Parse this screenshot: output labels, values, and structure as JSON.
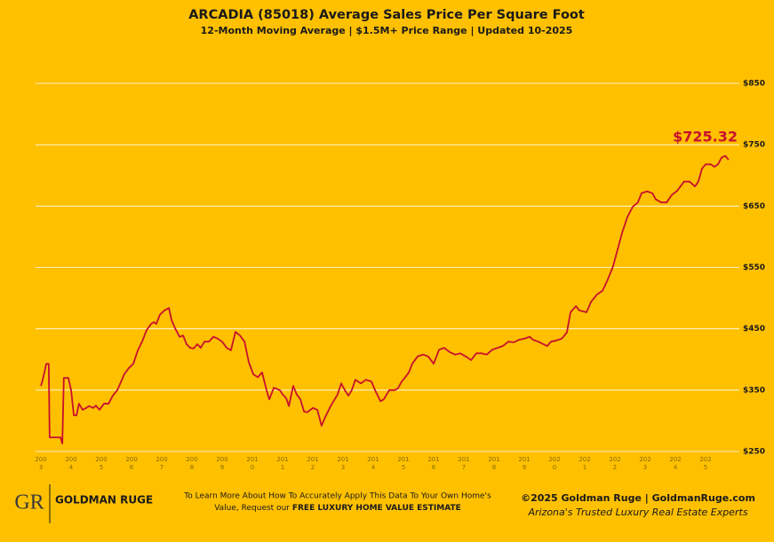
{
  "chart_data": {
    "type": "line",
    "title": "ARCADIA (85018) Average Sales Price Per Square Foot",
    "subtitle": "12-Month Moving Average | $1.5M+ Price Range | Updated 10-2025",
    "color": "#c8102e",
    "grid": true,
    "ylim": [
      250,
      850
    ],
    "yticks": [
      {
        "value": 250,
        "label": "$250"
      },
      {
        "value": 350,
        "label": "$350"
      },
      {
        "value": 450,
        "label": "$450"
      },
      {
        "value": 550,
        "label": "$550"
      },
      {
        "value": 650,
        "label": "$650"
      },
      {
        "value": 750,
        "label": "$750"
      },
      {
        "value": 850,
        "label": "$850"
      }
    ],
    "xlim": [
      2003,
      2026
    ],
    "xticks": [
      {
        "value": 2003,
        "label": [
          "200",
          "3"
        ]
      },
      {
        "value": 2004,
        "label": [
          "200",
          "4"
        ]
      },
      {
        "value": 2005,
        "label": [
          "200",
          "5"
        ]
      },
      {
        "value": 2006,
        "label": [
          "200",
          "6"
        ]
      },
      {
        "value": 2007,
        "label": [
          "200",
          "7"
        ]
      },
      {
        "value": 2008,
        "label": [
          "200",
          "8"
        ]
      },
      {
        "value": 2009,
        "label": [
          "200",
          "9"
        ]
      },
      {
        "value": 2010,
        "label": [
          "201",
          "0"
        ]
      },
      {
        "value": 2011,
        "label": [
          "201",
          "1"
        ]
      },
      {
        "value": 2012,
        "label": [
          "201",
          "2"
        ]
      },
      {
        "value": 2013,
        "label": [
          "201",
          "3"
        ]
      },
      {
        "value": 2014,
        "label": [
          "201",
          "4"
        ]
      },
      {
        "value": 2015,
        "label": [
          "201",
          "5"
        ]
      },
      {
        "value": 2016,
        "label": [
          "201",
          "6"
        ]
      },
      {
        "value": 2017,
        "label": [
          "201",
          "7"
        ]
      },
      {
        "value": 2018,
        "label": [
          "201",
          "8"
        ]
      },
      {
        "value": 2019,
        "label": [
          "201",
          "9"
        ]
      },
      {
        "value": 2020,
        "label": [
          "202",
          "0"
        ]
      },
      {
        "value": 2021,
        "label": [
          "202",
          "1"
        ]
      },
      {
        "value": 2022,
        "label": [
          "202",
          "2"
        ]
      },
      {
        "value": 2023,
        "label": [
          "202",
          "3"
        ]
      },
      {
        "value": 2024,
        "label": [
          "202",
          "4"
        ]
      },
      {
        "value": 2025,
        "label": [
          "202",
          "5"
        ]
      }
    ],
    "x": [
      2003.0,
      2003.06,
      2003.18,
      2003.26,
      2003.29,
      2003.65,
      2003.71,
      2003.76,
      2003.91,
      2004.0,
      2004.09,
      2004.18,
      2004.26,
      2004.38,
      2004.5,
      2004.59,
      2004.74,
      2004.82,
      2004.94,
      2005.09,
      2005.24,
      2005.38,
      2005.53,
      2005.62,
      2005.76,
      2005.91,
      2006.06,
      2006.21,
      2006.35,
      2006.5,
      2006.65,
      2006.74,
      2006.82,
      2006.94,
      2007.09,
      2007.24,
      2007.32,
      2007.44,
      2007.59,
      2007.71,
      2007.82,
      2007.94,
      2008.06,
      2008.18,
      2008.29,
      2008.41,
      2008.56,
      2008.71,
      2008.85,
      2009.0,
      2009.15,
      2009.29,
      2009.44,
      2009.59,
      2009.74,
      2009.88,
      2010.03,
      2010.18,
      2010.32,
      2010.47,
      2010.56,
      2010.71,
      2010.91,
      2011.0,
      2011.12,
      2011.21,
      2011.35,
      2011.47,
      2011.59,
      2011.71,
      2011.82,
      2012.0,
      2012.15,
      2012.29,
      2012.41,
      2012.59,
      2012.82,
      2012.94,
      2013.06,
      2013.18,
      2013.29,
      2013.41,
      2013.59,
      2013.76,
      2013.94,
      2014.06,
      2014.24,
      2014.35,
      2014.53,
      2014.71,
      2014.82,
      2014.94,
      2015.06,
      2015.18,
      2015.29,
      2015.47,
      2015.65,
      2015.82,
      2016.0,
      2016.18,
      2016.35,
      2016.53,
      2016.71,
      2016.88,
      2017.06,
      2017.24,
      2017.41,
      2017.59,
      2017.76,
      2017.94,
      2018.12,
      2018.29,
      2018.47,
      2018.65,
      2018.82,
      2019.0,
      2019.18,
      2019.29,
      2019.47,
      2019.59,
      2019.76,
      2019.88,
      2020.06,
      2020.24,
      2020.41,
      2020.53,
      2020.71,
      2020.82,
      2021.06,
      2021.21,
      2021.41,
      2021.59,
      2021.76,
      2021.94,
      2022.06,
      2022.24,
      2022.41,
      2022.59,
      2022.76,
      2022.88,
      2023.06,
      2023.24,
      2023.35,
      2023.53,
      2023.71,
      2023.88,
      2024.06,
      2024.29,
      2024.47,
      2024.65,
      2024.76,
      2024.88,
      2025.0,
      2025.18,
      2025.29,
      2025.41,
      2025.53,
      2025.65,
      2025.76
    ],
    "values": [
      357,
      367,
      393,
      393,
      273,
      273,
      263,
      370,
      370,
      350,
      309,
      309,
      328,
      318,
      321,
      324,
      321,
      325,
      318,
      328,
      328,
      341,
      350,
      360,
      376,
      386,
      393,
      415,
      429,
      448,
      458,
      461,
      458,
      473,
      480,
      484,
      465,
      451,
      437,
      439,
      425,
      419,
      418,
      425,
      419,
      429,
      429,
      437,
      434,
      429,
      419,
      415,
      445,
      439,
      429,
      396,
      376,
      371,
      379,
      350,
      335,
      354,
      350,
      343,
      337,
      324,
      357,
      343,
      335,
      315,
      314,
      321,
      318,
      292,
      306,
      324,
      343,
      361,
      350,
      341,
      350,
      367,
      361,
      367,
      364,
      350,
      332,
      335,
      350,
      350,
      353,
      364,
      371,
      379,
      393,
      405,
      408,
      405,
      393,
      416,
      419,
      412,
      408,
      410,
      405,
      399,
      410,
      410,
      408,
      416,
      419,
      422,
      429,
      428,
      432,
      434,
      437,
      432,
      429,
      426,
      422,
      429,
      431,
      434,
      444,
      477,
      487,
      480,
      477,
      494,
      506,
      512,
      530,
      552,
      574,
      607,
      632,
      649,
      656,
      671,
      674,
      671,
      661,
      656,
      656,
      668,
      675,
      690,
      690,
      682,
      690,
      711,
      718,
      718,
      714,
      718,
      729,
      732,
      725.32
    ],
    "end_label": "$725.32"
  },
  "footer": {
    "brand": "GOLDMAN RUGE",
    "logo_mark": "GR",
    "note_line1": "To Learn More About How To Accurately Apply This Data To Your Own Home's",
    "note_line2": "Value, Request our ",
    "note_line2_bold": "FREE LUXURY HOME VALUE ESTIMATE",
    "credit": "©2025 Goldman Ruge  |  GoldmanRuge.com",
    "tagline": "Arizona's Trusted Luxury Real Estate Experts"
  }
}
